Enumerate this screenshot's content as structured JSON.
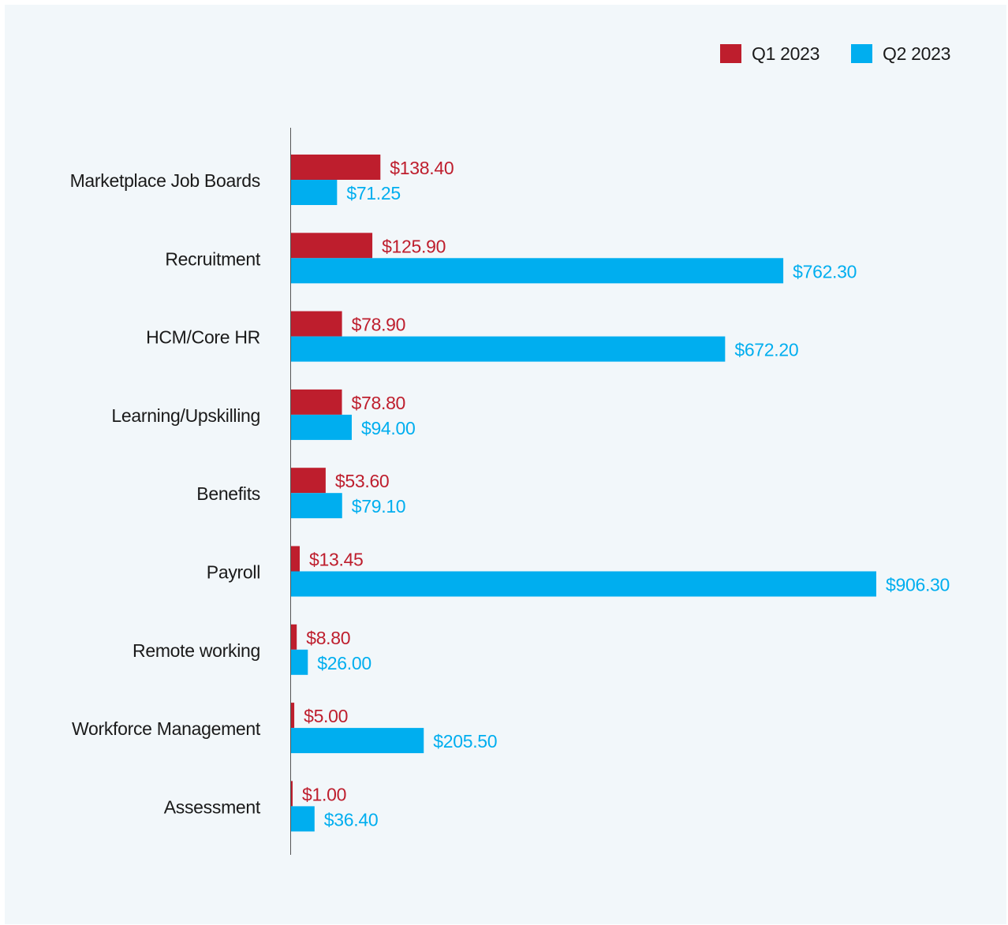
{
  "chart_data": {
    "type": "bar",
    "orientation": "horizontal",
    "categories": [
      "Marketplace Job Boards",
      "Recruitment",
      "HCM/Core HR",
      "Learning/Upskilling",
      "Benefits",
      "Payroll",
      "Remote working",
      "Workforce Management",
      "Assessment"
    ],
    "series": [
      {
        "name": "Q1 2023",
        "color": "#be1e2d",
        "values": [
          138.4,
          125.9,
          78.9,
          78.8,
          53.6,
          13.45,
          8.8,
          5.0,
          1.0
        ],
        "labels": [
          "$138.40",
          "$125.90",
          "$78.90",
          "$78.80",
          "$53.60",
          "$13.45",
          "$8.80",
          "$5.00",
          "$1.00"
        ]
      },
      {
        "name": "Q2 2023",
        "color": "#00aeef",
        "values": [
          71.25,
          762.3,
          672.2,
          94.0,
          79.1,
          906.3,
          26.0,
          205.5,
          36.4
        ],
        "labels": [
          "$71.25",
          "$762.30",
          "$672.20",
          "$94.00",
          "$79.10",
          "$906.30",
          "$26.00",
          "$205.50",
          "$36.40"
        ]
      }
    ],
    "legend_position": "top-right",
    "grid": false,
    "xlim": [
      0,
      906.3
    ]
  }
}
